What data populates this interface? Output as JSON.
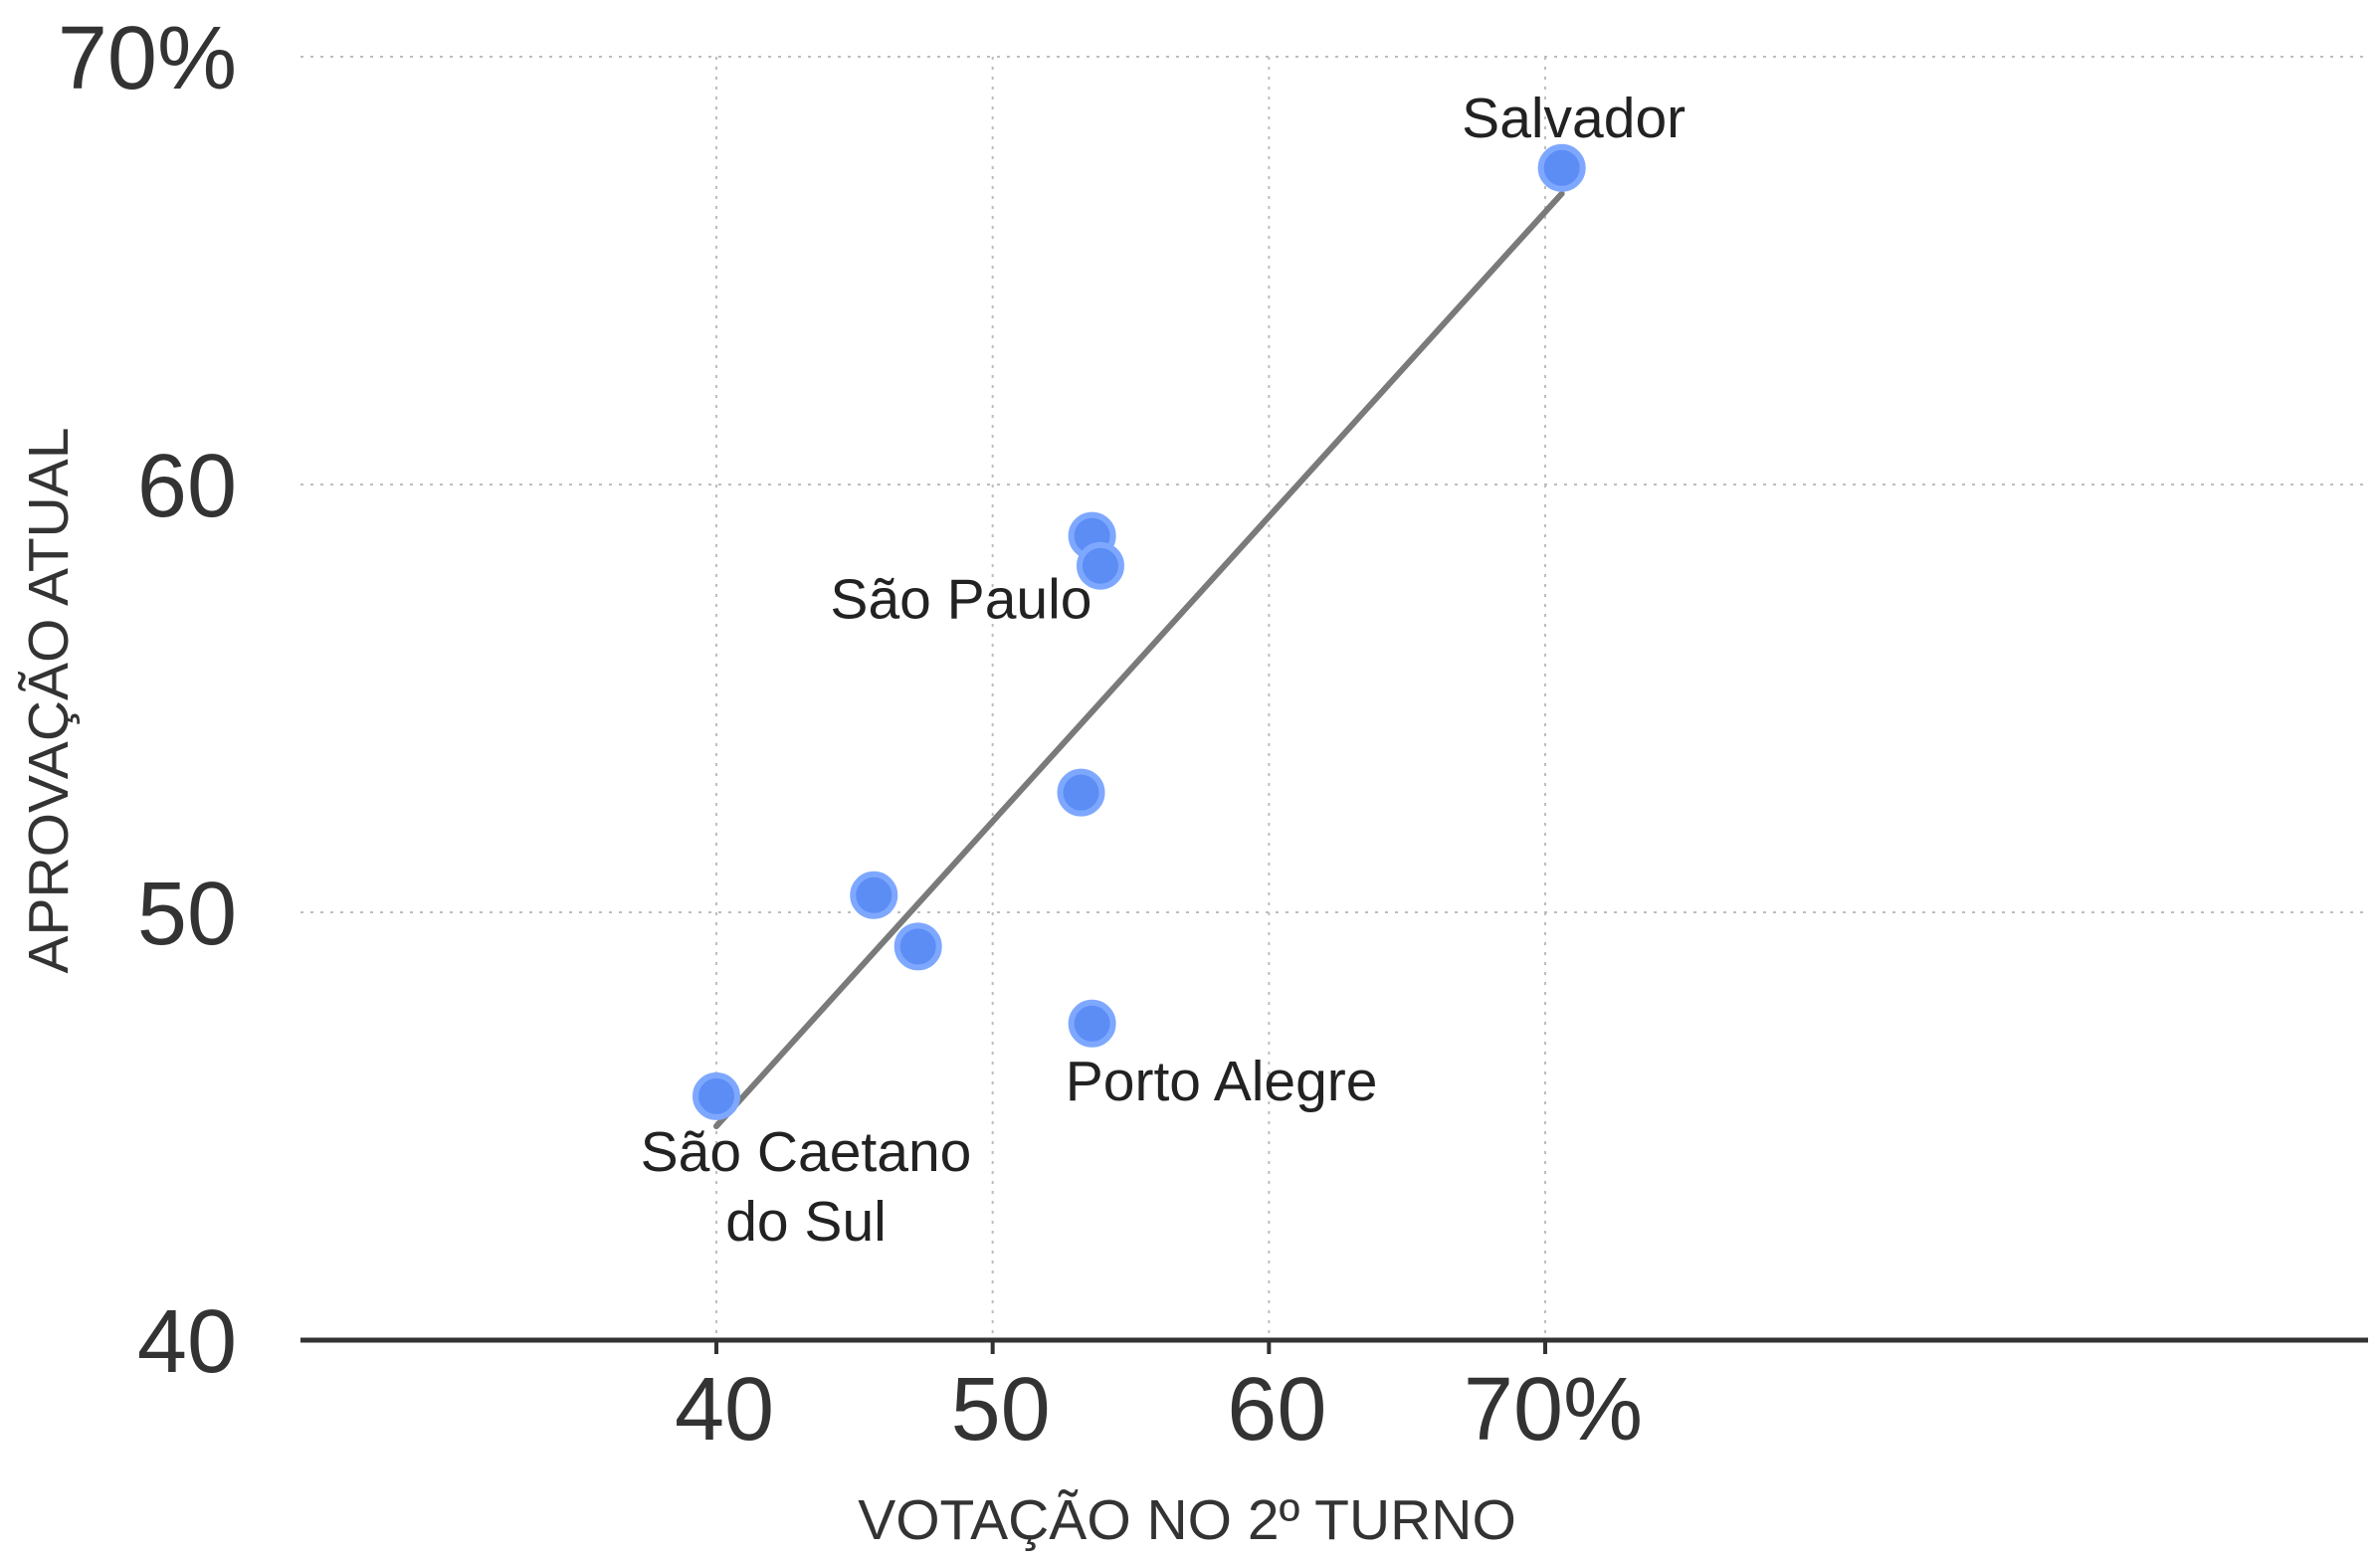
{
  "chart_data": {
    "type": "scatter",
    "xlabel": "VOTAÇÃO NO 2º TURNO",
    "ylabel": "APROVAÇÃO ATUAL",
    "xlim": [
      30,
      80
    ],
    "ylim": [
      40,
      70
    ],
    "x_ticks": [
      {
        "value": 40,
        "label": "40"
      },
      {
        "value": 50,
        "label": "50"
      },
      {
        "value": 60,
        "label": "60"
      },
      {
        "value": 70,
        "label": "70%"
      }
    ],
    "y_ticks": [
      {
        "value": 40,
        "label": "40"
      },
      {
        "value": 50,
        "label": "50"
      },
      {
        "value": 60,
        "label": "60"
      },
      {
        "value": 70,
        "label": "70%"
      }
    ],
    "grid": true,
    "points": [
      {
        "x": 40.0,
        "y": 45.7,
        "label": [
          "São Caetano",
          "do Sul"
        ],
        "label_pos": "below"
      },
      {
        "x": 45.7,
        "y": 50.4,
        "label": null
      },
      {
        "x": 47.3,
        "y": 49.2,
        "label": null
      },
      {
        "x": 53.2,
        "y": 52.8,
        "label": null
      },
      {
        "x": 53.6,
        "y": 58.8,
        "label": null
      },
      {
        "x": 53.9,
        "y": 58.1,
        "label": [
          "São Paulo"
        ],
        "label_pos": "below-left"
      },
      {
        "x": 53.6,
        "y": 47.4,
        "label": [
          "Porto Alegre"
        ],
        "label_pos": "below-right"
      },
      {
        "x": 70.6,
        "y": 67.4,
        "label": [
          "Salvador"
        ],
        "label_pos": "above"
      }
    ],
    "trendline": {
      "from": {
        "x": 40.0,
        "y": 45.0
      },
      "to": {
        "x": 70.6,
        "y": 66.8
      }
    },
    "colors": {
      "point_fill": "#5b8df5",
      "point_stroke": "#7ea8ff",
      "trendline": "#7a7a7a",
      "text": "#333333"
    }
  }
}
